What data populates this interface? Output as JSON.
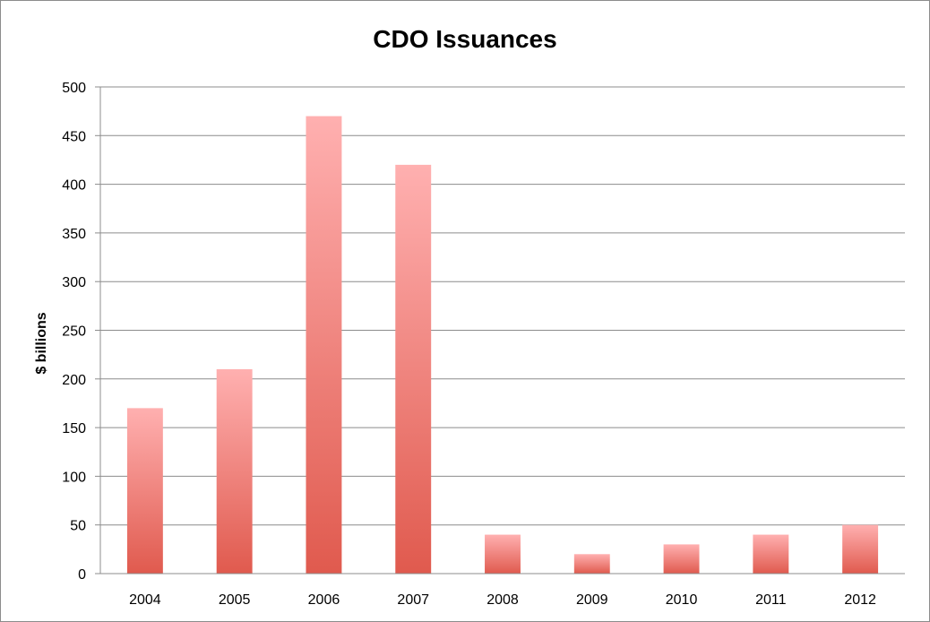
{
  "chart_data": {
    "type": "bar",
    "title": "CDO Issuances",
    "xlabel": "",
    "ylabel": "$ billions",
    "categories": [
      "2004",
      "2005",
      "2006",
      "2007",
      "2008",
      "2009",
      "2010",
      "2011",
      "2012"
    ],
    "values": [
      170,
      210,
      470,
      420,
      40,
      20,
      30,
      40,
      50
    ],
    "ylim": [
      0,
      500
    ],
    "yticks": [
      0,
      50,
      100,
      150,
      200,
      250,
      300,
      350,
      400,
      450,
      500
    ],
    "grid": true,
    "legend": "none",
    "colors": {
      "bar_top": "#ffb0b0",
      "bar_bottom": "#e05a4e",
      "grid": "#8c8c8c",
      "axis": "#8c8c8c"
    }
  }
}
